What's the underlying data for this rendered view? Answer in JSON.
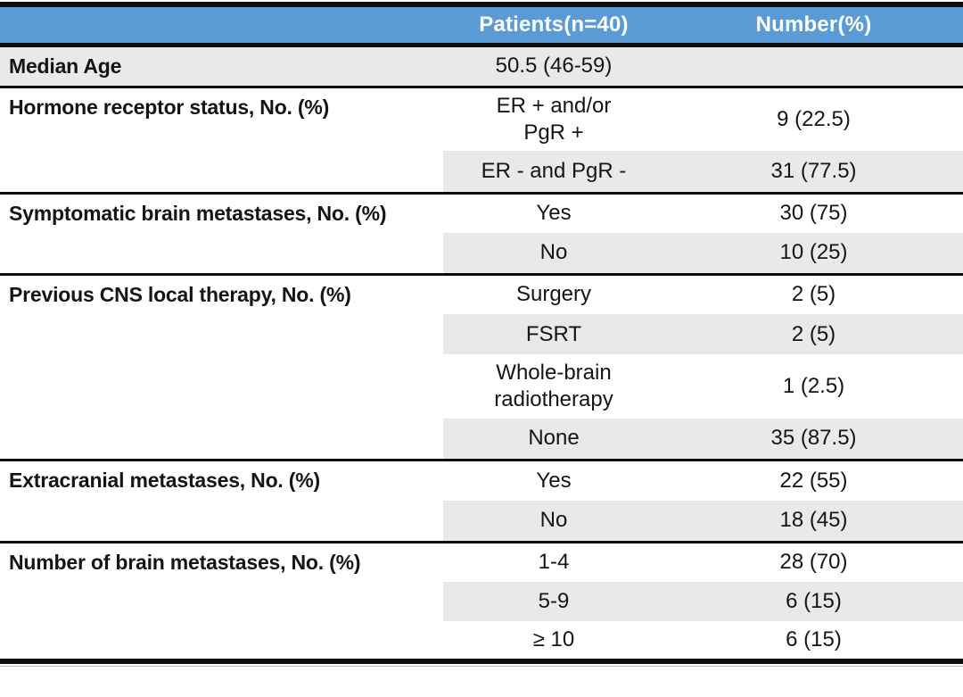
{
  "table": {
    "header": {
      "patients": "Patients(n=40)",
      "number": "Number(%)"
    },
    "sections": [
      {
        "label": "Median Age",
        "rows": [
          {
            "patients": "50.5 (46-59)",
            "number": ""
          }
        ]
      },
      {
        "label": "Hormone receptor status, No. (%)",
        "rows": [
          {
            "patients": "ER + and/or\nPgR +",
            "number": "9 (22.5)"
          },
          {
            "patients": "ER - and PgR -",
            "number": "31 (77.5)"
          }
        ]
      },
      {
        "label": "Symptomatic brain metastases, No. (%)",
        "rows": [
          {
            "patients": "Yes",
            "number": "30 (75)"
          },
          {
            "patients": "No",
            "number": "10 (25)"
          }
        ]
      },
      {
        "label": "Previous CNS local therapy, No. (%)",
        "rows": [
          {
            "patients": "Surgery",
            "number": "2 (5)"
          },
          {
            "patients": "FSRT",
            "number": "2 (5)"
          },
          {
            "patients": "Whole-brain\nradiotherapy",
            "number": "1 (2.5)"
          },
          {
            "patients": "None",
            "number": "35 (87.5)"
          }
        ]
      },
      {
        "label": "Extracranial metastases, No. (%)",
        "rows": [
          {
            "patients": "Yes",
            "number": "22 (55)"
          },
          {
            "patients": "No",
            "number": "18 (45)"
          }
        ]
      },
      {
        "label": "Number of brain metastases, No. (%)",
        "rows": [
          {
            "patients": "1-4",
            "number": "28 (70)"
          },
          {
            "patients": "5-9",
            "number": "6 (15)"
          },
          {
            "patients": "≥ 10",
            "number": "6 (15)"
          }
        ]
      }
    ]
  },
  "colors": {
    "header_bg": "#5b9bd5",
    "header_text": "#ffffff",
    "row_stripe": "#e9e9e9",
    "rule": "#0d0d0d",
    "text": "#151515"
  },
  "chart_data": {
    "type": "table",
    "columns": [
      "",
      "Patients(n=40)",
      "Number(%)"
    ],
    "rows": [
      [
        "Median Age",
        "50.5 (46-59)",
        ""
      ],
      [
        "Hormone receptor status, No. (%)",
        "ER + and/or PgR +",
        "9 (22.5)"
      ],
      [
        "",
        "ER - and PgR -",
        "31 (77.5)"
      ],
      [
        "Symptomatic brain metastases, No. (%)",
        "Yes",
        "30 (75)"
      ],
      [
        "",
        "No",
        "10 (25)"
      ],
      [
        "Previous CNS local therapy, No. (%)",
        "Surgery",
        "2 (5)"
      ],
      [
        "",
        "FSRT",
        "2 (5)"
      ],
      [
        "",
        "Whole-brain radiotherapy",
        "1 (2.5)"
      ],
      [
        "",
        "None",
        "35 (87.5)"
      ],
      [
        "Extracranial metastases, No. (%)",
        "Yes",
        "22 (55)"
      ],
      [
        "",
        "No",
        "18 (45)"
      ],
      [
        "Number of brain metastases, No. (%)",
        "1-4",
        "28 (70)"
      ],
      [
        "",
        "5-9",
        "6 (15)"
      ],
      [
        "",
        "≥ 10",
        "6 (15)"
      ]
    ]
  }
}
